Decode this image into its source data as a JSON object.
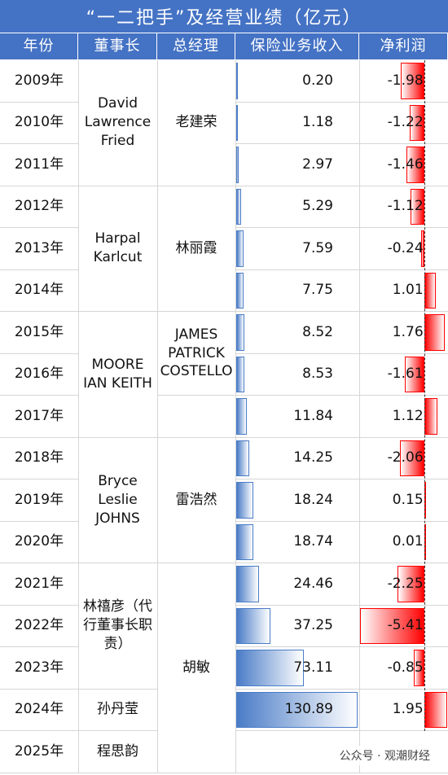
{
  "title": "“一二把手”及经营业绩（亿元）",
  "header": [
    "年份",
    "董事长",
    "总经理",
    "保险业务收入",
    "净利润"
  ],
  "years": [
    "2009年",
    "2010年",
    "2011年",
    "2012年",
    "2013年",
    "2014年",
    "2015年",
    "2016年",
    "2017年",
    "2018年",
    "2019年",
    "2020年",
    "2021年",
    "2022年",
    "2023年",
    "2024年",
    "2025年"
  ],
  "revenue": [
    "0.20",
    "1.18",
    "2.97",
    "5.29",
    "7.59",
    "7.75",
    "8.52",
    "8.53",
    "11.84",
    "14.25",
    "18.24",
    "18.74",
    "24.46",
    "37.25",
    "73.11",
    "130.89",
    null
  ],
  "profit": [
    "-1.98",
    "-1.22",
    "-1.46",
    "-1.12",
    "-0.24",
    "1.01",
    "1.76",
    "-1.61",
    "1.12",
    "-2.06",
    "0.15",
    "0.01",
    "-2.25",
    "-5.41",
    "-0.85",
    "1.95",
    null
  ],
  "chairmen": [
    "David Lawrence Fried",
    "Harpal Karlcut",
    "MOORE IAN KEITH",
    "Bryce Leslie JOHNS",
    "林禧彦（代行董事长职责）",
    "孙丹莹",
    "程思韵"
  ],
  "managers": [
    "老建荣",
    "林丽霞",
    "JAMES PATRICK COSTELLO",
    "雷浩然",
    "胡敏"
  ],
  "footer": "公众号 · 观潮财经"
}
